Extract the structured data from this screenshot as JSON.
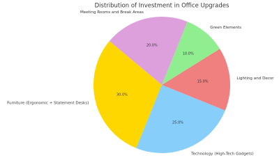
{
  "chart_data": {
    "type": "pie",
    "title": "Distribution of Investment in Office Upgrades",
    "categories": [
      "Furniture (Ergonomic + Statement Desks)",
      "Technology (High-Tech Gadgets)",
      "Lighting and Decor",
      "Green Elements",
      "Meeting Rooms and Break Areas"
    ],
    "values": [
      30,
      25,
      15,
      10,
      20
    ],
    "value_labels": [
      "30.0%",
      "25.0%",
      "15.0%",
      "10.0%",
      "20.0%"
    ],
    "colors": [
      "#ffd700",
      "#87cefa",
      "#f08080",
      "#90ee90",
      "#dda0dd"
    ]
  }
}
